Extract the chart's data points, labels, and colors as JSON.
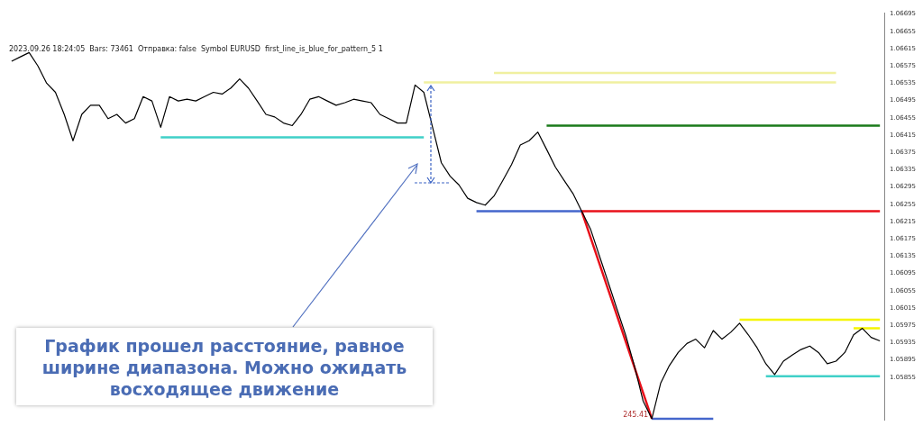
{
  "chart_data": {
    "type": "line",
    "tick_labels": "y",
    "annotations": [
      "2023.09.26 18:24:05  Bars: 73461  Отправка: false  Symbol EURUSD  first_line_is_blue_for_pattern_5 1",
      "График прошел расстояние, равное ширине диапазона. Можно ожидать восходящее движение",
      "245.41"
    ],
    "ylim": [
      1.05755,
      1.06698
    ],
    "yticks": [
      1.05855,
      1.05895,
      1.05935,
      1.05975,
      1.06015,
      1.06055,
      1.06095,
      1.06135,
      1.06175,
      1.06215,
      1.06255,
      1.06295,
      1.06335,
      1.06375,
      1.06415,
      1.06455,
      1.06495,
      1.06535,
      1.06575,
      1.06615,
      1.06655,
      1.06695
    ],
    "categories": [
      null,
      null,
      null,
      null,
      null,
      null,
      null,
      null,
      null,
      null,
      null,
      null,
      null,
      null,
      null,
      null,
      null,
      null,
      null,
      null,
      null,
      null,
      null,
      null,
      null,
      null,
      null,
      null,
      null,
      null,
      null,
      null,
      null,
      null,
      null,
      null,
      null,
      null,
      null,
      null,
      null,
      null,
      null,
      null,
      null,
      null,
      null,
      null,
      null,
      null,
      null,
      null,
      null,
      null,
      null,
      null,
      null,
      null,
      null,
      null,
      null,
      null,
      null,
      null,
      null,
      null,
      null,
      null,
      null,
      null,
      null,
      null,
      null,
      null,
      null,
      null,
      null,
      null,
      null,
      null,
      null,
      null,
      null,
      null,
      null,
      null,
      null,
      null,
      null,
      null,
      null,
      null,
      null,
      null,
      null,
      null,
      null,
      null,
      null,
      null
    ],
    "series": [
      {
        "color": "#000000",
        "values": [
          1.06586,
          1.06596,
          1.06606,
          1.06575,
          1.06535,
          1.06514,
          1.06463,
          1.06402,
          1.06463,
          1.06484,
          1.06484,
          1.06453,
          1.06463,
          1.06443,
          1.06453,
          1.06504,
          1.06494,
          1.06433,
          1.06504,
          1.06494,
          1.06498,
          1.06494,
          1.06504,
          1.06514,
          1.0651,
          1.06524,
          1.06545,
          1.06524,
          1.06494,
          1.06463,
          1.06457,
          1.06443,
          1.06437,
          1.06463,
          1.06498,
          1.06504,
          1.06494,
          1.06484,
          1.0649,
          1.06498,
          1.06494,
          1.0649,
          1.06463,
          1.06453,
          1.06443,
          1.06443,
          1.06531,
          1.06514,
          1.06433,
          1.06351,
          1.0632,
          1.063,
          1.06269,
          1.06259,
          1.06253,
          1.06274,
          1.0631,
          1.06347,
          1.06392,
          1.06402,
          1.06422,
          1.06382,
          1.06341,
          1.0631,
          1.0628,
          1.06239,
          1.06198,
          1.06137,
          1.06076,
          1.06014,
          1.05953,
          1.05882,
          1.058,
          1.05759,
          1.05841,
          1.05882,
          1.05912,
          1.05933,
          1.05943,
          1.05923,
          1.05963,
          1.05943,
          1.05959,
          1.0598,
          1.05953,
          1.05923,
          1.05886,
          1.05861,
          1.05892,
          1.05906,
          1.05919,
          1.05927,
          1.05912,
          1.05886,
          1.05892,
          1.05912,
          1.05953,
          1.05968,
          1.05947,
          1.05939
        ]
      },
      {
        "color": "#f0f0a0",
        "values": [
          null,
          null,
          null,
          null,
          null,
          null,
          null,
          null,
          null,
          null,
          null,
          null,
          null,
          null,
          null,
          null,
          null,
          null,
          null,
          null,
          null,
          null,
          null,
          null,
          null,
          null,
          null,
          null,
          null,
          null,
          null,
          null,
          null,
          null,
          null,
          null,
          null,
          null,
          null,
          null,
          null,
          null,
          null,
          null,
          null,
          null,
          null,
          null,
          null,
          null,
          null,
          null,
          null,
          null,
          null,
          1.06559,
          1.06559,
          1.06559,
          1.06559,
          1.06559,
          1.06559,
          1.06559,
          1.06559,
          1.06559,
          1.06559,
          1.06559,
          1.06559,
          1.06559,
          1.06559,
          1.06559,
          1.06559,
          1.06559,
          1.06559,
          1.06559,
          1.06559,
          1.06559,
          1.06559,
          1.06559,
          1.06559,
          1.06559,
          1.06559,
          1.06559,
          1.06559,
          1.06559,
          1.06559,
          1.06559,
          1.06559,
          1.06559,
          1.06559,
          1.06559,
          1.06559,
          1.06559,
          1.06559,
          1.06559,
          1.06559,
          null,
          null,
          null,
          null,
          null
        ]
      },
      {
        "color": "#f0f0a0",
        "values": [
          null,
          null,
          null,
          null,
          null,
          null,
          null,
          null,
          null,
          null,
          null,
          null,
          null,
          null,
          null,
          null,
          null,
          null,
          null,
          null,
          null,
          null,
          null,
          null,
          null,
          null,
          null,
          null,
          null,
          null,
          null,
          null,
          null,
          null,
          null,
          null,
          null,
          null,
          null,
          null,
          null,
          null,
          null,
          null,
          null,
          null,
          null,
          1.06537,
          1.06537,
          1.06537,
          1.06537,
          1.06537,
          1.06537,
          1.06537,
          1.06537,
          1.06537,
          1.06537,
          1.06537,
          1.06537,
          1.06537,
          1.06537,
          1.06537,
          1.06537,
          1.06537,
          1.06537,
          1.06537,
          1.06537,
          1.06537,
          1.06537,
          1.06537,
          1.06537,
          1.06537,
          1.06537,
          1.06537,
          1.06537,
          1.06537,
          1.06537,
          1.06537,
          1.06537,
          1.06537,
          1.06537,
          1.06537,
          1.06537,
          1.06537,
          1.06537,
          1.06537,
          1.06537,
          1.06537,
          1.06537,
          1.06537,
          1.06537,
          1.06537,
          1.06537,
          1.06537,
          1.06537,
          null,
          null,
          null,
          null,
          null
        ]
      },
      {
        "color": "#40d0c8",
        "values": [
          null,
          null,
          null,
          null,
          null,
          null,
          null,
          null,
          null,
          null,
          null,
          null,
          null,
          null,
          null,
          null,
          null,
          1.0641,
          1.0641,
          1.0641,
          1.0641,
          1.0641,
          1.0641,
          1.0641,
          1.0641,
          1.0641,
          1.0641,
          1.0641,
          1.0641,
          1.0641,
          1.0641,
          1.0641,
          1.0641,
          1.0641,
          1.0641,
          1.0641,
          1.0641,
          1.0641,
          1.0641,
          1.0641,
          1.0641,
          1.0641,
          1.0641,
          1.0641,
          1.0641,
          1.0641,
          1.0641,
          1.0641,
          null,
          null,
          null,
          null,
          null,
          null,
          null,
          null,
          null,
          null,
          null,
          null,
          null,
          null,
          null,
          null,
          null,
          null,
          null,
          null,
          null,
          null,
          null,
          null,
          null,
          null,
          null,
          null,
          null,
          null,
          null,
          null,
          null,
          null,
          null,
          null,
          null,
          null,
          null,
          null,
          null,
          null,
          null,
          null,
          null,
          null,
          null,
          null,
          null,
          null,
          null,
          null
        ]
      },
      {
        "color": "#1a7a1a",
        "values": [
          null,
          null,
          null,
          null,
          null,
          null,
          null,
          null,
          null,
          null,
          null,
          null,
          null,
          null,
          null,
          null,
          null,
          null,
          null,
          null,
          null,
          null,
          null,
          null,
          null,
          null,
          null,
          null,
          null,
          null,
          null,
          null,
          null,
          null,
          null,
          null,
          null,
          null,
          null,
          null,
          null,
          null,
          null,
          null,
          null,
          null,
          null,
          null,
          null,
          null,
          null,
          null,
          null,
          null,
          null,
          null,
          null,
          null,
          null,
          null,
          null,
          1.06437,
          1.06437,
          1.06437,
          1.06437,
          1.06437,
          1.06437,
          1.06437,
          1.06437,
          1.06437,
          1.06437,
          1.06437,
          1.06437,
          1.06437,
          1.06437,
          1.06437,
          1.06437,
          1.06437,
          1.06437,
          1.06437,
          1.06437,
          1.06437,
          1.06437,
          1.06437,
          1.06437,
          1.06437,
          1.06437,
          1.06437,
          1.06437,
          1.06437,
          1.06437,
          1.06437,
          1.06437,
          1.06437,
          1.06437,
          1.06437,
          1.06437,
          1.06437,
          1.06437,
          1.06437
        ]
      },
      {
        "color": "#4466cc",
        "values": [
          null,
          null,
          null,
          null,
          null,
          null,
          null,
          null,
          null,
          null,
          null,
          null,
          null,
          null,
          null,
          null,
          null,
          null,
          null,
          null,
          null,
          null,
          null,
          null,
          null,
          null,
          null,
          null,
          null,
          null,
          null,
          null,
          null,
          null,
          null,
          null,
          null,
          null,
          null,
          null,
          null,
          null,
          null,
          null,
          null,
          null,
          null,
          null,
          null,
          null,
          null,
          null,
          null,
          1.06239,
          1.06239,
          1.06239,
          1.06239,
          1.06239,
          1.06239,
          1.06239,
          1.06239,
          1.06239,
          1.06239,
          1.06239,
          1.06239,
          1.06239,
          null,
          null,
          null,
          null,
          null,
          null,
          null,
          null,
          null,
          null,
          null,
          null,
          null,
          null,
          null,
          null,
          null,
          null,
          null,
          null,
          null,
          null,
          null,
          null,
          null,
          null,
          null,
          null,
          null,
          null,
          null,
          null,
          null,
          null
        ]
      },
      {
        "color": "#e8101a",
        "values": [
          null,
          null,
          null,
          null,
          null,
          null,
          null,
          null,
          null,
          null,
          null,
          null,
          null,
          null,
          null,
          null,
          null,
          null,
          null,
          null,
          null,
          null,
          null,
          null,
          null,
          null,
          null,
          null,
          null,
          null,
          null,
          null,
          null,
          null,
          null,
          null,
          null,
          null,
          null,
          null,
          null,
          null,
          null,
          null,
          null,
          null,
          null,
          null,
          null,
          null,
          null,
          null,
          null,
          null,
          null,
          null,
          null,
          null,
          null,
          null,
          null,
          null,
          null,
          null,
          null,
          1.06239,
          1.06239,
          1.06239,
          1.06239,
          1.06239,
          1.06239,
          1.06239,
          1.06239,
          1.06239,
          1.06239,
          1.06239,
          1.06239,
          1.06239,
          1.06239,
          1.06239,
          1.06239,
          1.06239,
          1.06239,
          1.06239,
          1.06239,
          1.06239,
          1.06239,
          1.06239,
          1.06239,
          1.06239,
          1.06239,
          1.06239,
          1.06239,
          1.06239,
          1.06239,
          1.06239,
          1.06239,
          1.06239,
          1.06239,
          1.06239
        ]
      },
      {
        "color": "#e8101a",
        "values": [
          null,
          null,
          null,
          null,
          null,
          null,
          null,
          null,
          null,
          null,
          null,
          null,
          null,
          null,
          null,
          null,
          null,
          null,
          null,
          null,
          null,
          null,
          null,
          null,
          null,
          null,
          null,
          null,
          null,
          null,
          null,
          null,
          null,
          null,
          null,
          null,
          null,
          null,
          null,
          null,
          null,
          null,
          null,
          null,
          null,
          null,
          null,
          null,
          null,
          null,
          null,
          null,
          null,
          null,
          null,
          null,
          null,
          null,
          null,
          null,
          null,
          null,
          null,
          null,
          null,
          1.06239,
          1.06179,
          1.06119,
          1.06059,
          1.05999,
          1.05939,
          1.05879,
          1.05819,
          1.05759,
          null,
          null,
          null,
          null,
          null,
          null,
          null,
          null,
          null,
          null,
          null,
          null,
          null,
          null,
          null,
          null,
          null,
          null,
          null,
          null,
          null,
          null,
          null,
          null,
          null,
          null
        ]
      },
      {
        "color": "#4466cc",
        "values": [
          null,
          null,
          null,
          null,
          null,
          null,
          null,
          null,
          null,
          null,
          null,
          null,
          null,
          null,
          null,
          null,
          null,
          null,
          null,
          null,
          null,
          null,
          null,
          null,
          null,
          null,
          null,
          null,
          null,
          null,
          null,
          null,
          null,
          null,
          null,
          null,
          null,
          null,
          null,
          null,
          null,
          null,
          null,
          null,
          null,
          null,
          null,
          null,
          null,
          null,
          null,
          null,
          null,
          null,
          null,
          null,
          null,
          null,
          null,
          null,
          null,
          null,
          null,
          null,
          null,
          null,
          null,
          null,
          null,
          null,
          null,
          null,
          null,
          1.05759,
          1.05759,
          1.05759,
          1.05759,
          1.05759,
          1.05759,
          1.05759,
          1.05759,
          null,
          null,
          null,
          null,
          null,
          null,
          null,
          null,
          null,
          null,
          null,
          null,
          null,
          null,
          null,
          null,
          null,
          null,
          null
        ]
      },
      {
        "color": "#f5f500",
        "values": [
          null,
          null,
          null,
          null,
          null,
          null,
          null,
          null,
          null,
          null,
          null,
          null,
          null,
          null,
          null,
          null,
          null,
          null,
          null,
          null,
          null,
          null,
          null,
          null,
          null,
          null,
          null,
          null,
          null,
          null,
          null,
          null,
          null,
          null,
          null,
          null,
          null,
          null,
          null,
          null,
          null,
          null,
          null,
          null,
          null,
          null,
          null,
          null,
          null,
          null,
          null,
          null,
          null,
          null,
          null,
          null,
          null,
          null,
          null,
          null,
          null,
          null,
          null,
          null,
          null,
          null,
          null,
          null,
          null,
          null,
          null,
          null,
          null,
          null,
          null,
          null,
          null,
          null,
          null,
          null,
          null,
          null,
          null,
          1.05988,
          1.05988,
          1.05988,
          1.05988,
          1.05988,
          1.05988,
          1.05988,
          1.05988,
          1.05988,
          1.05988,
          1.05988,
          1.05988,
          1.05988,
          1.05988,
          1.05988,
          1.05988,
          1.05988
        ]
      },
      {
        "color": "#f5f500",
        "values": [
          null,
          null,
          null,
          null,
          null,
          null,
          null,
          null,
          null,
          null,
          null,
          null,
          null,
          null,
          null,
          null,
          null,
          null,
          null,
          null,
          null,
          null,
          null,
          null,
          null,
          null,
          null,
          null,
          null,
          null,
          null,
          null,
          null,
          null,
          null,
          null,
          null,
          null,
          null,
          null,
          null,
          null,
          null,
          null,
          null,
          null,
          null,
          null,
          null,
          null,
          null,
          null,
          null,
          null,
          null,
          null,
          null,
          null,
          null,
          null,
          null,
          null,
          null,
          null,
          null,
          null,
          null,
          null,
          null,
          null,
          null,
          null,
          null,
          null,
          null,
          null,
          null,
          null,
          null,
          null,
          null,
          null,
          null,
          null,
          null,
          null,
          null,
          null,
          null,
          null,
          null,
          null,
          null,
          null,
          null,
          null,
          1.05968,
          1.05968,
          1.05968,
          1.05968
        ]
      },
      {
        "color": "#40d0c8",
        "values": [
          null,
          null,
          null,
          null,
          null,
          null,
          null,
          null,
          null,
          null,
          null,
          null,
          null,
          null,
          null,
          null,
          null,
          null,
          null,
          null,
          null,
          null,
          null,
          null,
          null,
          null,
          null,
          null,
          null,
          null,
          null,
          null,
          null,
          null,
          null,
          null,
          null,
          null,
          null,
          null,
          null,
          null,
          null,
          null,
          null,
          null,
          null,
          null,
          null,
          null,
          null,
          null,
          null,
          null,
          null,
          null,
          null,
          null,
          null,
          null,
          null,
          null,
          null,
          null,
          null,
          null,
          null,
          null,
          null,
          null,
          null,
          null,
          null,
          null,
          null,
          null,
          null,
          null,
          null,
          null,
          null,
          null,
          null,
          null,
          null,
          null,
          1.05857,
          1.05857,
          1.05857,
          1.05857,
          1.05857,
          1.05857,
          1.05857,
          1.05857,
          1.05857,
          1.05857,
          1.05857,
          1.05857,
          1.05857,
          1.05857
        ]
      }
    ]
  }
}
